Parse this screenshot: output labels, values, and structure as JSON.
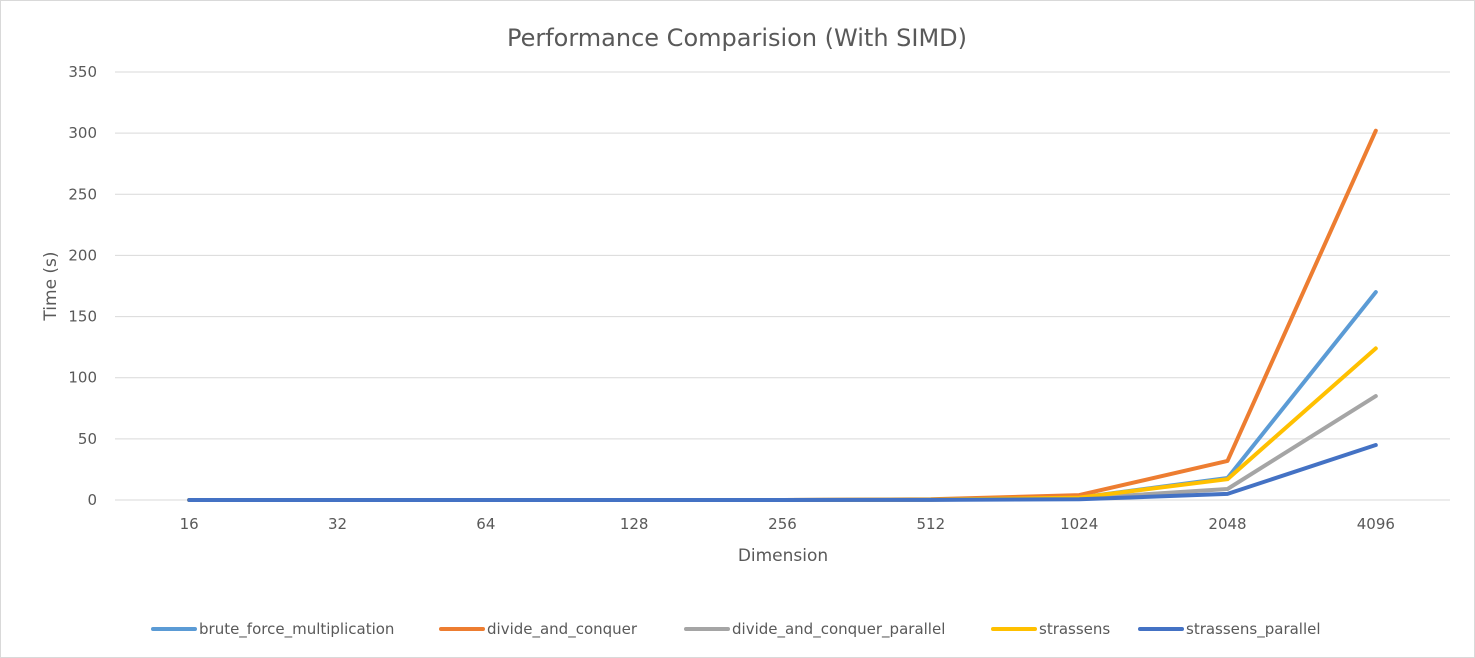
{
  "chart_data": {
    "type": "line",
    "title": "Performance Comparision (With SIMD)",
    "xlabel": "Dimension",
    "ylabel": "Time (s)",
    "categories": [
      "16",
      "32",
      "64",
      "128",
      "256",
      "512",
      "1024",
      "2048",
      "4096"
    ],
    "yticks": [
      "0",
      "50",
      "100",
      "150",
      "200",
      "250",
      "300",
      "350"
    ],
    "ylim": [
      0,
      350
    ],
    "grid": true,
    "legend_position": "bottom",
    "series": [
      {
        "name": "brute_force_multiplication",
        "color": "#5b9bd5",
        "values": [
          0,
          0,
          0,
          0,
          0,
          0.3,
          2,
          18,
          170
        ]
      },
      {
        "name": "divide_and_conquer",
        "color": "#ed7d31",
        "values": [
          0,
          0,
          0,
          0,
          0,
          0.6,
          4,
          32,
          302
        ]
      },
      {
        "name": "divide_and_conquer_parallel",
        "color": "#a5a5a5",
        "values": [
          0,
          0,
          0,
          0,
          0,
          0.2,
          1.2,
          9,
          85
        ]
      },
      {
        "name": "strassens",
        "color": "#ffc000",
        "values": [
          0,
          0,
          0,
          0,
          0,
          0.3,
          2,
          17,
          124
        ]
      },
      {
        "name": "strassens_parallel",
        "color": "#4472c4",
        "values": [
          0,
          0,
          0,
          0,
          0,
          0.1,
          0.6,
          5,
          45
        ]
      }
    ]
  }
}
